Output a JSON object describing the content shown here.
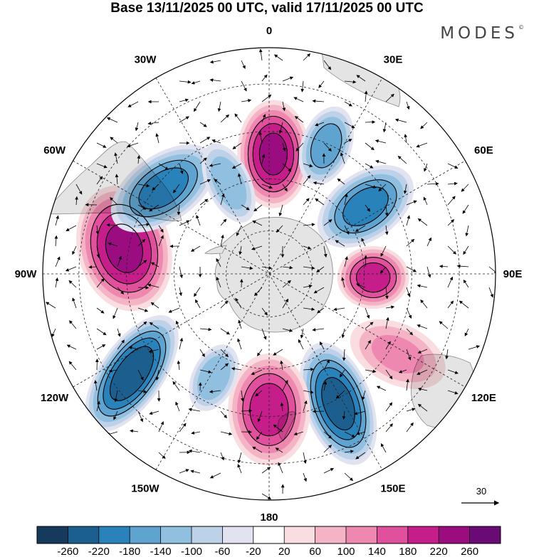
{
  "title": "Base 13/11/2025 00 UTC, valid 17/11/2025 00 UTC",
  "brand": "MODES",
  "brand_mark": "©",
  "chart_data": {
    "type": "heatmap",
    "projection": "south-polar-stereographic",
    "title": "Base 13/11/2025 00 UTC, valid 17/11/2025 00 UTC",
    "longitude_labels": [
      "0",
      "30E",
      "60E",
      "90E",
      "120E",
      "150E",
      "180",
      "150W",
      "120W",
      "90W",
      "60W",
      "30W"
    ],
    "colorbar": {
      "ticks": [
        "-260",
        "-220",
        "-180",
        "-140",
        "-100",
        "-60",
        "-20",
        "20",
        "60",
        "100",
        "140",
        "180",
        "220",
        "260"
      ],
      "colors": [
        "#163a5c",
        "#1c5f8e",
        "#2a82bb",
        "#5fa4d0",
        "#91bfdf",
        "#bdd2e8",
        "#e1e3f0",
        "#ffffff",
        "#f9dde0",
        "#f4b4c6",
        "#ee88b0",
        "#e0509c",
        "#c51e8a",
        "#9a0c80",
        "#6a0a74"
      ]
    },
    "vector_reference": "30",
    "anomaly_centers": [
      {
        "name": "center-0E",
        "sign": "positive",
        "value": 230
      },
      {
        "name": "center-22E",
        "sign": "negative",
        "value": -170
      },
      {
        "name": "center-48E",
        "sign": "negative",
        "value": -200
      },
      {
        "name": "center-85E",
        "sign": "positive",
        "value": 200
      },
      {
        "name": "center-115E",
        "sign": "positive",
        "value": 110
      },
      {
        "name": "center-155E",
        "sign": "negative",
        "value": -240
      },
      {
        "name": "center-178W",
        "sign": "positive",
        "value": 200
      },
      {
        "name": "center-145W",
        "sign": "negative",
        "value": -140
      },
      {
        "name": "center-120W",
        "sign": "negative",
        "value": -250
      },
      {
        "name": "center-85W",
        "sign": "positive",
        "value": 230
      },
      {
        "name": "center-55W",
        "sign": "negative",
        "value": -200
      },
      {
        "name": "center-20W",
        "sign": "negative",
        "value": -140
      }
    ]
  }
}
